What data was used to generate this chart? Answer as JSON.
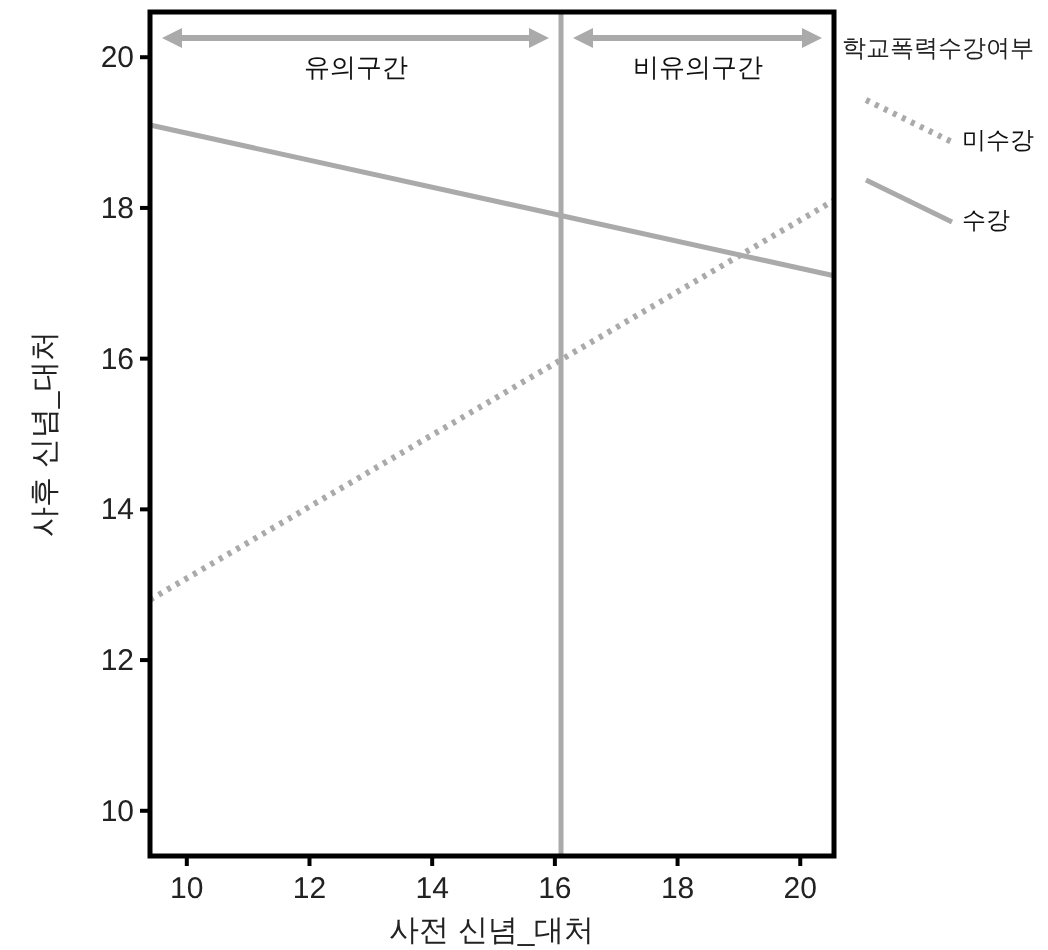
{
  "chart_data": {
    "type": "line",
    "xlabel": "사전 신념_대처",
    "ylabel": "사후 신념_대처",
    "legend_title": "학교폭력수강여부",
    "xlim": [
      9.4,
      20.55
    ],
    "ylim": [
      9.4,
      20.6
    ],
    "xticks": [
      10,
      12,
      14,
      16,
      18,
      20
    ],
    "yticks": [
      10,
      12,
      14,
      16,
      18,
      20
    ],
    "legend": "right",
    "marker": "none",
    "series": [
      {
        "name": "미수강",
        "color": "#aaaaaa",
        "line_style": "dotted",
        "values": [
          12.8,
          18.1
        ]
      },
      {
        "name": "수강",
        "color": "#aaaaaa",
        "line_style": "solid",
        "values": [
          19.1,
          17.1
        ]
      }
    ],
    "x": [
      9.4,
      20.55
    ],
    "ref_lines": [
      {
        "axis": "x",
        "value": 16.1,
        "color": "#aaaaaa"
      }
    ],
    "annotations": [
      "유의구간",
      "비유의구간"
    ]
  }
}
